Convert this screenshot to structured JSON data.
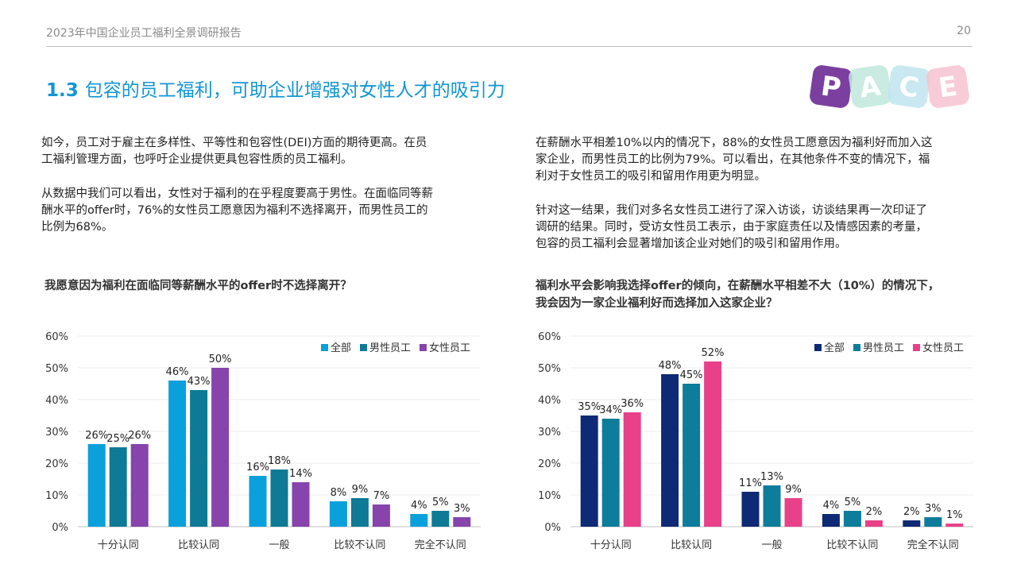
{
  "header": {
    "title": "2023年中国企业员工福利全景调研报告",
    "page_number": "20"
  },
  "section": {
    "number": "1.3",
    "title": "包容的员工福利，可助企业增强对女性人才的吸引力"
  },
  "logo": {
    "letters": [
      "P",
      "A",
      "C",
      "E"
    ],
    "colors": [
      "#7b3fa0",
      "#bfe8dc",
      "#bfe4f0",
      "#f6c3d1"
    ]
  },
  "left_text": {
    "p1": [
      "如今，员工对于雇主在多样性、平等性和包容性(DEI)方面的期待更高。在员",
      "工福利管理方面，也呼吁企业提供更具包容性质的员工福利。"
    ],
    "p2": [
      "从数据中我们可以看出，女性对于福利的在乎程度要高于男性。在面临同等薪",
      "酬水平的offer时，76%的女性员工愿意因为福利不选择离开，而男性员工的",
      "比例为68%。"
    ]
  },
  "right_text": {
    "p1": [
      "在薪酬水平相差10%以内的情况下，88%的女性员工愿意因为福利好而加入这",
      "家企业，而男性员工的比例为79%。可以看出，在其他条件不变的情况下，福",
      "利对于女性员工的吸引和留用作用更为明显。"
    ],
    "p2": [
      "针对这一结果，我们对多名女性员工进行了深入访谈，访谈结果再一次印证了",
      "调研的结果。同时，受访女性员工表示，由于家庭责任以及情感因素的考量，",
      "包容的员工福利会显著增加该企业对她们的吸引和留用作用。"
    ]
  },
  "chart_data": [
    {
      "type": "bar",
      "title": "我愿意因为福利在面临同等薪酬水平的offer时不选择离开？",
      "categories": [
        "十分认同",
        "比较认同",
        "一般",
        "比较不认同",
        "完全不认同"
      ],
      "series": [
        {
          "name": "全部",
          "color": "#0aa0dc",
          "values": [
            26,
            46,
            16,
            8,
            4
          ]
        },
        {
          "name": "男性员工",
          "color": "#0e7a96",
          "values": [
            25,
            43,
            18,
            9,
            5
          ]
        },
        {
          "name": "女性员工",
          "color": "#8644ac",
          "values": [
            26,
            50,
            14,
            7,
            3
          ]
        }
      ],
      "yticks": [
        "0%",
        "10%",
        "20%",
        "30%",
        "40%",
        "50%",
        "60%"
      ],
      "ylim": [
        0,
        60
      ],
      "legend": "top-right",
      "grid": true
    },
    {
      "type": "bar",
      "title": [
        "福利水平会影响我选择offer的倾向，在薪酬水平相差不大（10%）的情况下，",
        "我会因为一家企业福利好而选择加入这家企业？"
      ],
      "categories": [
        "十分认同",
        "比较认同",
        "一般",
        "比较不认同",
        "完全不认同"
      ],
      "series": [
        {
          "name": "全部",
          "color": "#0f2a74",
          "values": [
            35,
            48,
            11,
            4,
            2
          ]
        },
        {
          "name": "男性员工",
          "color": "#0d7d9b",
          "values": [
            34,
            45,
            13,
            5,
            3
          ]
        },
        {
          "name": "女性员工",
          "color": "#e8418a",
          "values": [
            36,
            52,
            9,
            2,
            1
          ]
        }
      ],
      "yticks": [
        "0%",
        "10%",
        "20%",
        "30%",
        "40%",
        "50%",
        "60%"
      ],
      "ylim": [
        0,
        60
      ],
      "legend": "top-right",
      "grid": true
    }
  ]
}
